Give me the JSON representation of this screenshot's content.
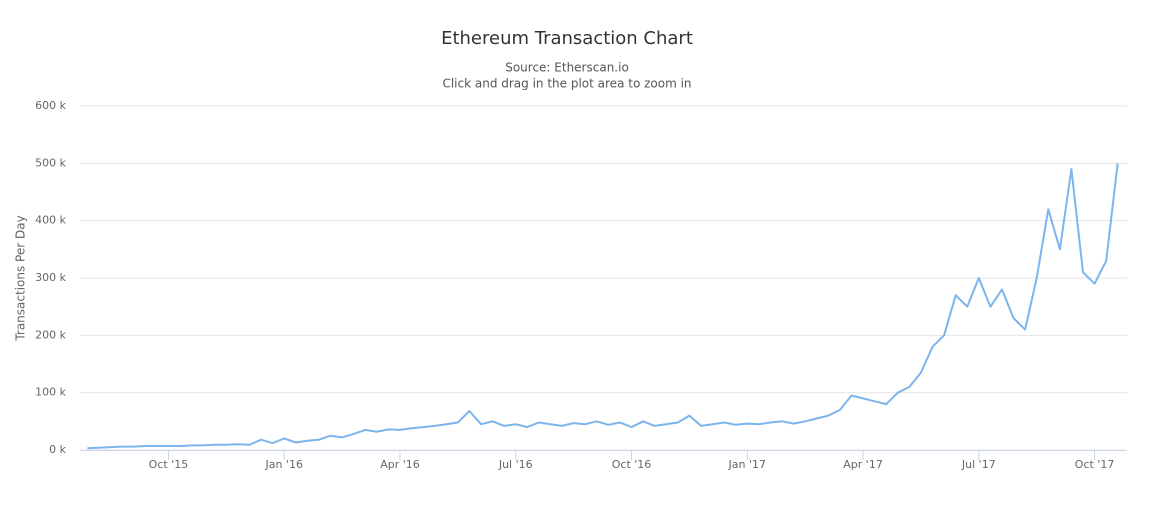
{
  "chart_data": {
    "type": "line",
    "title": "Ethereum Transaction Chart",
    "subtitle": [
      "Source: Etherscan.io",
      "Click and drag in the plot area to zoom in"
    ],
    "y_label": "Transactions Per Day",
    "xlim": [
      2015.559,
      2017.82
    ],
    "xticks": [
      {
        "value": 2015.75,
        "label": "Oct '15"
      },
      {
        "value": 2016.0,
        "label": "Jan '16"
      },
      {
        "value": 2016.25,
        "label": "Apr '16"
      },
      {
        "value": 2016.5,
        "label": "Jul '16"
      },
      {
        "value": 2016.75,
        "label": "Oct '16"
      },
      {
        "value": 2017.0,
        "label": "Jan '17"
      },
      {
        "value": 2017.25,
        "label": "Apr '17"
      },
      {
        "value": 2017.5,
        "label": "Jul '17"
      },
      {
        "value": 2017.75,
        "label": "Oct '17"
      }
    ],
    "ylim": [
      0,
      600
    ],
    "yticks": [
      {
        "value": 0,
        "label": "0 k"
      },
      {
        "value": 100,
        "label": "100 k"
      },
      {
        "value": 200,
        "label": "200 k"
      },
      {
        "value": 300,
        "label": "300 k"
      },
      {
        "value": 400,
        "label": "400 k"
      },
      {
        "value": 500,
        "label": "500 k"
      },
      {
        "value": 600,
        "label": "600 k"
      }
    ],
    "grid": true,
    "x": [
      2015.575,
      2015.6,
      2015.625,
      2015.65,
      2015.675,
      2015.7,
      2015.725,
      2015.75,
      2015.775,
      2015.8,
      2015.825,
      2015.85,
      2015.875,
      2015.9,
      2015.925,
      2015.95,
      2015.975,
      2016.0,
      2016.025,
      2016.05,
      2016.075,
      2016.1,
      2016.125,
      2016.15,
      2016.175,
      2016.2,
      2016.225,
      2016.25,
      2016.275,
      2016.3,
      2016.325,
      2016.35,
      2016.375,
      2016.4,
      2016.425,
      2016.45,
      2016.475,
      2016.5,
      2016.525,
      2016.55,
      2016.575,
      2016.6,
      2016.625,
      2016.65,
      2016.675,
      2016.7,
      2016.725,
      2016.75,
      2016.775,
      2016.8,
      2016.825,
      2016.85,
      2016.875,
      2016.9,
      2016.925,
      2016.95,
      2016.975,
      2017.0,
      2017.025,
      2017.05,
      2017.075,
      2017.1,
      2017.125,
      2017.15,
      2017.175,
      2017.2,
      2017.225,
      2017.25,
      2017.275,
      2017.3,
      2017.325,
      2017.35,
      2017.375,
      2017.4,
      2017.425,
      2017.45,
      2017.475,
      2017.5,
      2017.525,
      2017.55,
      2017.575,
      2017.6,
      2017.625,
      2017.65,
      2017.675,
      2017.7,
      2017.725,
      2017.75,
      2017.775,
      2017.8
    ],
    "series": [
      {
        "name": "Transactions Per Day",
        "color": "#7cb5ec",
        "values": [
          3,
          4,
          5,
          6,
          6,
          7,
          7,
          7,
          7,
          8,
          8,
          9,
          9,
          10,
          9,
          18,
          12,
          20,
          13,
          16,
          18,
          25,
          22,
          28,
          35,
          32,
          36,
          35,
          38,
          40,
          42,
          45,
          48,
          68,
          45,
          50,
          42,
          45,
          40,
          48,
          45,
          42,
          47,
          45,
          50,
          44,
          48,
          40,
          50,
          42,
          45,
          48,
          60,
          42,
          45,
          48,
          44,
          46,
          45,
          48,
          50,
          46,
          50,
          55,
          60,
          70,
          95,
          90,
          85,
          80,
          100,
          110,
          135,
          180,
          200,
          270,
          250,
          300,
          250,
          280,
          230,
          210,
          300,
          420,
          350,
          490,
          310,
          290,
          330,
          500
        ]
      }
    ]
  }
}
